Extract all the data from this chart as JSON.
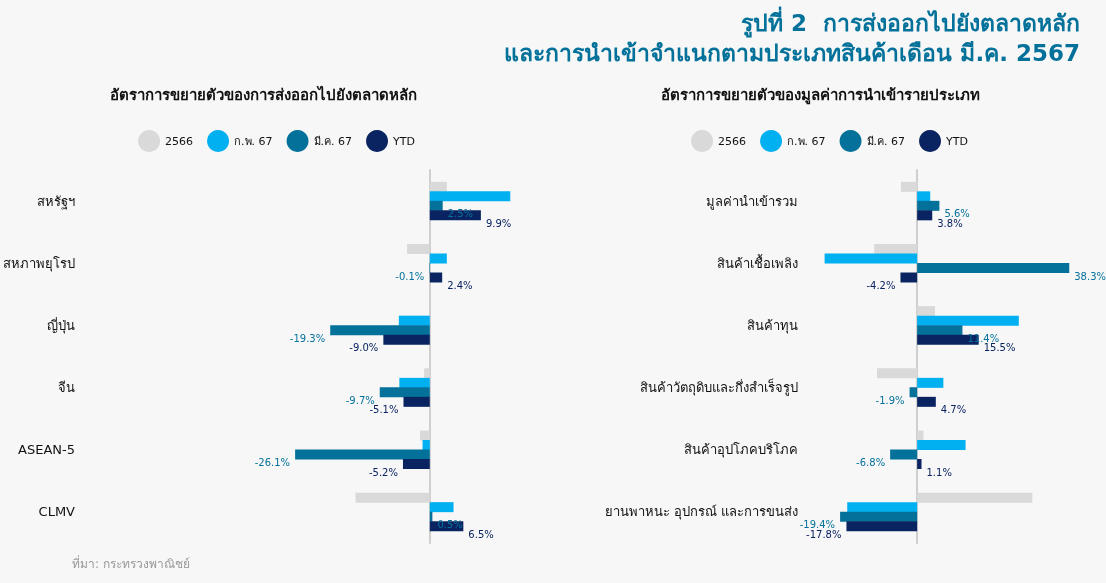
{
  "chart_data": [
    {
      "type": "bar",
      "orientation": "horizontal",
      "title": "รูปที่ 2  การส่งออกไปยังตลาดหลัก\nและการนำเข้าจำแนกตามประเภทสินค้าเดือน มี.ค. 2567",
      "subtitle": "อัตราการขยายตัวของการส่งออกไปยังตลาดหลัก",
      "annotations": [
        "ที่มา: กระทรวงพาณิชย์"
      ],
      "legend": "top",
      "categories": [
        "สหรัฐฯ",
        "สหภาพยุโรป",
        "ญี่ปุ่น",
        "จีน",
        "ASEAN-5",
        "CLMV"
      ],
      "series": [
        {
          "name": "2566",
          "color": "#d9d9d9",
          "values": [
            3.3,
            -4.4,
            null,
            -1.1,
            -1.9,
            -14.4
          ]
        },
        {
          "name": "ก.พ. 67",
          "color": "#00b0f0",
          "values": [
            15.6,
            3.3,
            -6.0,
            -5.9,
            -1.4,
            4.6
          ]
        },
        {
          "name": "มี.ค. 67",
          "color": "#04719a",
          "values": [
            2.5,
            -0.1,
            -19.3,
            -9.7,
            -26.1,
            0.5
          ],
          "value_labels": [
            "2.5%",
            "-0.1%",
            "-19.3%",
            "-9.7%",
            "-26.1%",
            "0.5%"
          ]
        },
        {
          "name": "YTD",
          "color": "#0a2461",
          "values": [
            9.9,
            2.4,
            -9.0,
            -5.1,
            -5.2,
            6.5
          ],
          "value_labels": [
            "9.9%",
            "2.4%",
            "-9.0%",
            "-5.1%",
            "-5.2%",
            "6.5%"
          ]
        }
      ]
    },
    {
      "type": "bar",
      "orientation": "horizontal",
      "subtitle": "อัตราการขยายตัวของมูลค่าการนำเข้ารายประเภท",
      "legend": "top",
      "categories": [
        "มูลค่านำเข้ารวม",
        "สินค้าเชื้อเพลิง",
        "สินค้าทุน",
        "สินค้าวัตถุดิบและกึ่งสำเร็จรูป",
        "สินค้าอุปโภคบริโภค",
        "ยานพาหนะ อุปกรณ์ และการขนส่ง"
      ],
      "series": [
        {
          "name": "2566",
          "color": "#d9d9d9",
          "values": [
            -4.1,
            -10.8,
            4.5,
            -10.1,
            1.6,
            29.0
          ]
        },
        {
          "name": "ก.พ. 67",
          "color": "#00b0f0",
          "values": [
            3.3,
            -23.3,
            25.6,
            6.6,
            12.2,
            -17.6
          ]
        },
        {
          "name": "มี.ค. 67",
          "color": "#04719a",
          "values": [
            5.6,
            38.3,
            11.4,
            -1.9,
            -6.8,
            -19.4
          ],
          "value_labels": [
            "5.6%",
            "38.3%",
            "11.4%",
            "-1.9%",
            "-6.8%",
            "-19.4%"
          ]
        },
        {
          "name": "YTD",
          "color": "#0a2461",
          "values": [
            3.8,
            -4.2,
            15.5,
            4.7,
            1.1,
            -17.8
          ],
          "value_labels": [
            "3.8%",
            "-4.2%",
            "15.5%",
            "4.7%",
            "1.1%",
            "-17.8%"
          ]
        }
      ]
    }
  ]
}
